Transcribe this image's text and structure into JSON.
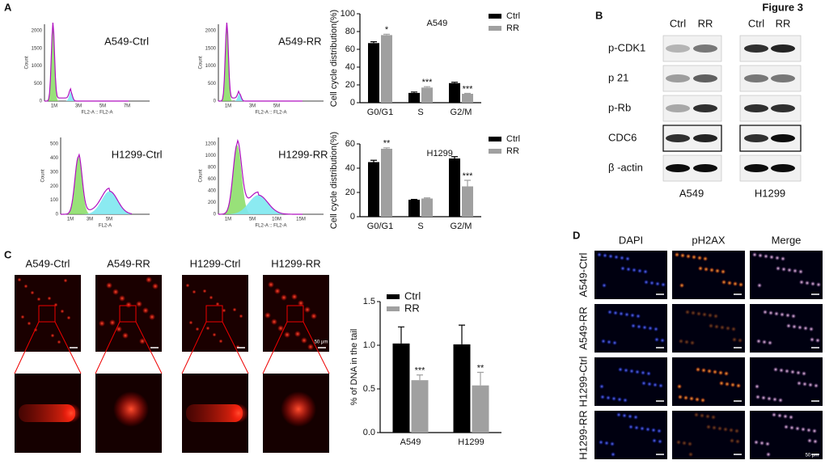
{
  "figure_label": "Figure 3",
  "panels": [
    "A",
    "B",
    "C",
    "D"
  ],
  "flow": [
    {
      "title": "A549-Ctrl",
      "xlabel": "FL2-A :: FL2-A",
      "ylabel": "Count",
      "xticks": [
        "1M",
        "3M",
        "5M",
        "7M"
      ],
      "yticks": [
        0,
        500,
        1000,
        1500,
        2000
      ]
    },
    {
      "title": "A549-RR",
      "xlabel": "FL2-A :: FL2-A",
      "ylabel": "Count",
      "xticks": [
        "1M",
        "3M",
        "5M"
      ],
      "yticks": [
        0,
        500,
        1000,
        1500,
        2000
      ]
    },
    {
      "title": "H1299-Ctrl",
      "xlabel": "FL2-A",
      "ylabel": "Count",
      "xticks": [
        "1M",
        "3M",
        "5M"
      ],
      "yticks": [
        0,
        100,
        200,
        300,
        400,
        500
      ]
    },
    {
      "title": "H1299-RR",
      "xlabel": "FL2-A :: FL2-A",
      "ylabel": "Count",
      "xticks": [
        "1M",
        "5M",
        "10M",
        "15M"
      ],
      "yticks": [
        0,
        200,
        400,
        600,
        800,
        1000,
        1200
      ]
    }
  ],
  "chart_data": [
    {
      "type": "bar",
      "annotation": "A549",
      "ylabel": "Cell cycle distribution(%)",
      "categories": [
        "G0/G1",
        "S",
        "G2/M"
      ],
      "series": [
        {
          "name": "Ctrl",
          "color": "#000000",
          "values": [
            67,
            11,
            22
          ],
          "errors": [
            1.5,
            1,
            1
          ]
        },
        {
          "name": "RR",
          "color": "#a0a0a0",
          "values": [
            76,
            17,
            10
          ],
          "errors": [
            1,
            1,
            0.5
          ]
        }
      ],
      "significance": [
        "*",
        "***",
        "***"
      ],
      "ylim": [
        0,
        100
      ],
      "yticks": [
        0,
        20,
        40,
        60,
        80,
        100
      ],
      "legend": "upper right"
    },
    {
      "type": "bar",
      "annotation": "H1299",
      "ylabel": "Cell cycle distribution(%)",
      "categories": [
        "G0/G1",
        "S",
        "G2/M"
      ],
      "series": [
        {
          "name": "Ctrl",
          "color": "#000000",
          "values": [
            45,
            14,
            48
          ],
          "errors": [
            1.5,
            0.3,
            1.5
          ]
        },
        {
          "name": "RR",
          "color": "#a0a0a0",
          "values": [
            56,
            15,
            25
          ],
          "errors": [
            0.8,
            0.5,
            5
          ]
        }
      ],
      "significance": [
        "**",
        null,
        "***"
      ],
      "ylim": [
        0,
        60
      ],
      "yticks": [
        0,
        20,
        40,
        60
      ],
      "legend": "upper right"
    },
    {
      "type": "bar",
      "ylabel": "% of DNA in the tail",
      "categories": [
        "A549",
        "H1299"
      ],
      "series": [
        {
          "name": "Ctrl",
          "color": "#000000",
          "values": [
            1.02,
            1.01
          ],
          "errors": [
            0.19,
            0.22
          ]
        },
        {
          "name": "RR",
          "color": "#a0a0a0",
          "values": [
            0.6,
            0.54
          ],
          "errors": [
            0.06,
            0.15
          ]
        }
      ],
      "significance": [
        "***",
        "**"
      ],
      "ylim": [
        0,
        1.5
      ],
      "yticks": [
        {
          "value": 0,
          "label": "0.0"
        },
        0.5,
        {
          "value": 1,
          "label": "1.0"
        },
        1.5
      ],
      "legend": "upper left"
    }
  ],
  "blot": {
    "conditions": [
      "Ctrl",
      "RR",
      "Ctrl",
      "RR"
    ],
    "proteins": [
      "p-CDK1",
      "p 21",
      "p-Rb",
      "CDC6",
      "β -actin"
    ],
    "cells": [
      "A549",
      "H1299"
    ]
  },
  "comet": {
    "samples": [
      "A549-Ctrl",
      "A549-RR",
      "H1299-Ctrl",
      "H1299-RR"
    ],
    "scale": "50 μm"
  },
  "immuno": {
    "channels": [
      "DAPI",
      "pH2AX",
      "Merge"
    ],
    "samples": [
      "A549-Ctrl",
      "A549-RR",
      "H1299-Ctrl",
      "H1299-RR"
    ],
    "scale": "50 μm"
  }
}
